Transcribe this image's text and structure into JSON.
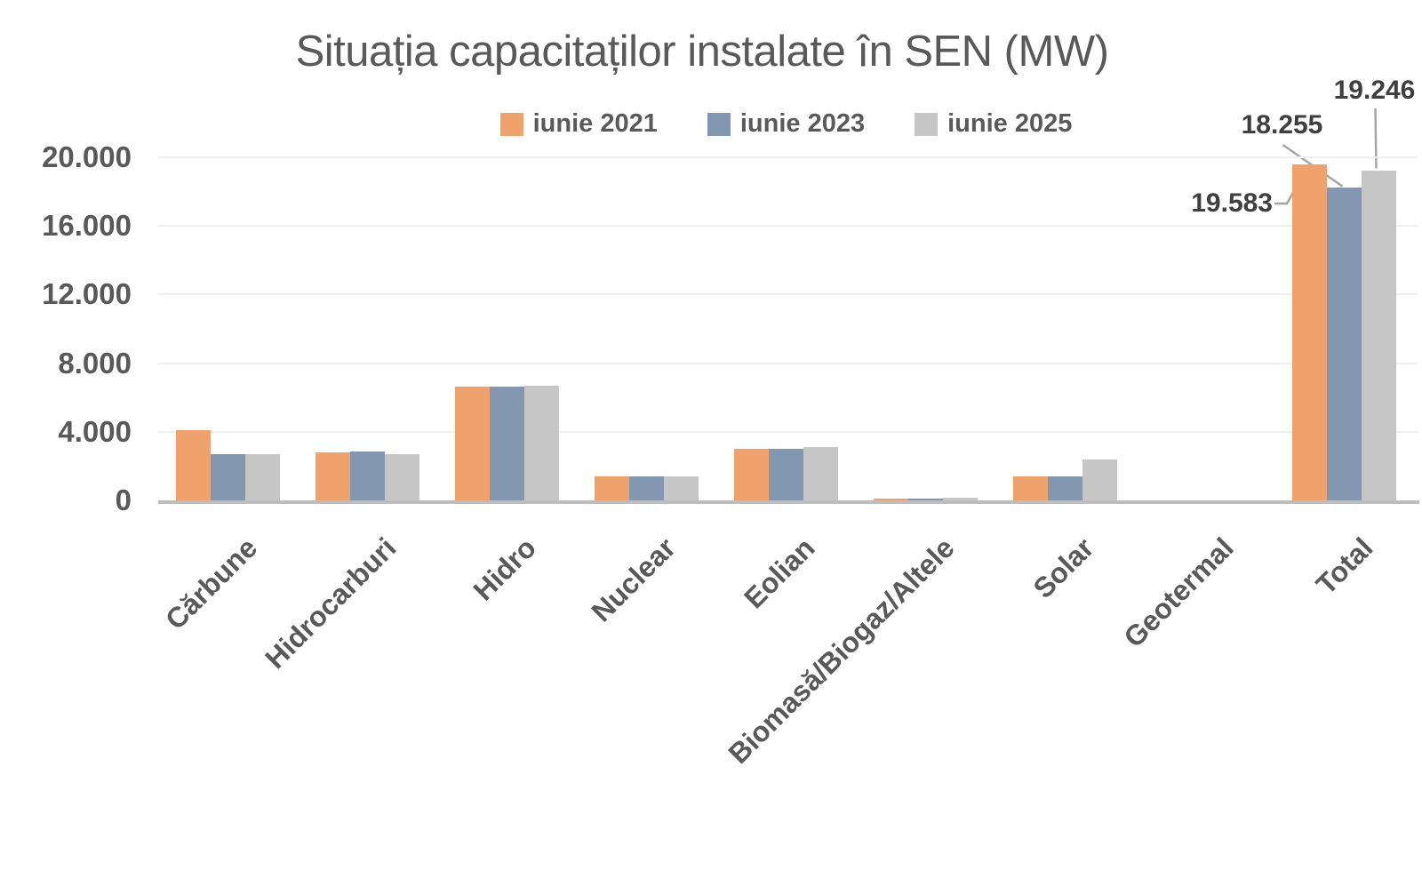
{
  "chart_data": {
    "type": "bar",
    "title": "Situația capacitaților instalate în SEN (MW)",
    "xlabel": "",
    "ylabel": "",
    "ylim": [
      0,
      20000
    ],
    "grid": true,
    "legend_position": "top",
    "categories": [
      "Cărbune",
      "Hidrocarburi",
      "Hidro",
      "Nuclear",
      "Eolian",
      "Biomasă/Biogaz/Altele",
      "Solar",
      "Geotermal",
      "Total"
    ],
    "series": [
      {
        "name": "iunie 2021",
        "color": "#F0A26C",
        "values": [
          4100,
          2800,
          6650,
          1413,
          3000,
          110,
          1400,
          0,
          19583
        ]
      },
      {
        "name": "iunie 2023",
        "color": "#8497B0",
        "values": [
          2700,
          2850,
          6650,
          1413,
          2980,
          120,
          1400,
          0,
          18255
        ]
      },
      {
        "name": "iunie 2025",
        "color": "#C6C6C6",
        "values": [
          2700,
          2700,
          6700,
          1413,
          3090,
          130,
          2400,
          0,
          19246
        ]
      }
    ],
    "yticks": [
      {
        "value": 0,
        "label": "0"
      },
      {
        "value": 4000,
        "label": "4.000"
      },
      {
        "value": 8000,
        "label": "8.000"
      },
      {
        "value": 12000,
        "label": "12.000"
      },
      {
        "value": 16000,
        "label": "16.000"
      },
      {
        "value": 20000,
        "label": "20.000"
      }
    ],
    "annotations": [
      {
        "text": "19.583",
        "series": "iunie 2021",
        "category": "Total"
      },
      {
        "text": "18.255",
        "series": "iunie 2023",
        "category": "Total"
      },
      {
        "text": "19.246",
        "series": "iunie 2025",
        "category": "Total"
      }
    ]
  },
  "colors": {
    "background": "#FFFFFF",
    "title_text": "#595959",
    "axis_text": "#595959",
    "annotation_text": "#3F3F3F",
    "gridline": "#EFEFEF",
    "axis_line": "#BDBDBD",
    "leader_line": "#A6A6A6"
  }
}
